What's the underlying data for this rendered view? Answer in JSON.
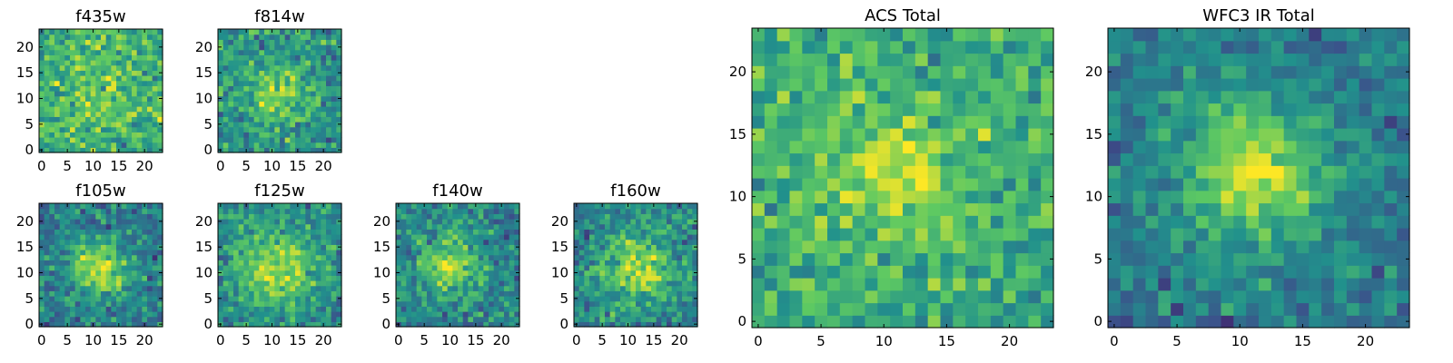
{
  "figure_title": "",
  "colormap": "viridis",
  "colormap_stops": [
    "#440154",
    "#3b528b",
    "#21918c",
    "#5ec962",
    "#fde725"
  ],
  "chart_data": [
    {
      "type": "heatmap",
      "title": "f435w",
      "image_shape": [
        24,
        24
      ],
      "xlim": [
        0,
        24
      ],
      "ylim": [
        0,
        24
      ],
      "xticks": [
        0,
        5,
        10,
        15,
        20
      ],
      "yticks": [
        0,
        5,
        10,
        15,
        20
      ],
      "peak": [
        10,
        12
      ],
      "peak_sigma": 6,
      "peak_amplitude": 0.12,
      "background_level": 0.62,
      "noise_level": 0.16,
      "noise_seed": 11
    },
    {
      "type": "heatmap",
      "title": "f814w",
      "image_shape": [
        24,
        24
      ],
      "xlim": [
        0,
        24
      ],
      "ylim": [
        0,
        24
      ],
      "xticks": [
        0,
        5,
        10,
        15,
        20
      ],
      "yticks": [
        0,
        5,
        10,
        15,
        20
      ],
      "peak": [
        11,
        11
      ],
      "peak_sigma": 4,
      "peak_amplitude": 0.28,
      "background_level": 0.52,
      "noise_level": 0.15,
      "noise_seed": 23
    },
    {
      "type": "heatmap",
      "title": "f105w",
      "image_shape": [
        24,
        24
      ],
      "xlim": [
        0,
        24
      ],
      "ylim": [
        0,
        24
      ],
      "xticks": [
        0,
        5,
        10,
        15,
        20
      ],
      "yticks": [
        0,
        5,
        10,
        15,
        20
      ],
      "peak": [
        11,
        11
      ],
      "peak_sigma": 4,
      "peak_amplitude": 0.45,
      "background_level": 0.42,
      "noise_level": 0.14,
      "noise_seed": 37
    },
    {
      "type": "heatmap",
      "title": "f125w",
      "image_shape": [
        24,
        24
      ],
      "xlim": [
        0,
        24
      ],
      "ylim": [
        0,
        24
      ],
      "xticks": [
        0,
        5,
        10,
        15,
        20
      ],
      "yticks": [
        0,
        5,
        10,
        15,
        20
      ],
      "peak": [
        11,
        11
      ],
      "peak_sigma": 5,
      "peak_amplitude": 0.4,
      "background_level": 0.48,
      "noise_level": 0.13,
      "noise_seed": 41
    },
    {
      "type": "heatmap",
      "title": "f140w",
      "image_shape": [
        24,
        24
      ],
      "xlim": [
        0,
        24
      ],
      "ylim": [
        0,
        24
      ],
      "xticks": [
        0,
        5,
        10,
        15,
        20
      ],
      "yticks": [
        0,
        5,
        10,
        15,
        20
      ],
      "peak": [
        10,
        11
      ],
      "peak_sigma": 4,
      "peak_amplitude": 0.42,
      "background_level": 0.45,
      "noise_level": 0.14,
      "noise_seed": 53
    },
    {
      "type": "heatmap",
      "title": "f160w",
      "image_shape": [
        24,
        24
      ],
      "xlim": [
        0,
        24
      ],
      "ylim": [
        0,
        24
      ],
      "xticks": [
        0,
        5,
        10,
        15,
        20
      ],
      "yticks": [
        0,
        5,
        10,
        15,
        20
      ],
      "peak": [
        12,
        11
      ],
      "peak_sigma": 5,
      "peak_amplitude": 0.42,
      "background_level": 0.45,
      "noise_level": 0.14,
      "noise_seed": 67
    },
    {
      "type": "heatmap",
      "title": "ACS Total",
      "image_shape": [
        24,
        24
      ],
      "xlim": [
        0,
        24
      ],
      "ylim": [
        0,
        24
      ],
      "xticks": [
        0,
        5,
        10,
        15,
        20
      ],
      "yticks": [
        0,
        5,
        10,
        15,
        20
      ],
      "peak": [
        11,
        12
      ],
      "peak_sigma": 4,
      "peak_amplitude": 0.25,
      "background_level": 0.62,
      "noise_level": 0.14,
      "noise_seed": 79
    },
    {
      "type": "heatmap",
      "title": "WFC3 IR Total",
      "image_shape": [
        24,
        24
      ],
      "xlim": [
        0,
        24
      ],
      "ylim": [
        0,
        24
      ],
      "xticks": [
        0,
        5,
        10,
        15,
        20
      ],
      "yticks": [
        0,
        5,
        10,
        15,
        20
      ],
      "peak": [
        11,
        12
      ],
      "peak_sigma": 4,
      "peak_amplitude": 0.52,
      "background_level": 0.4,
      "noise_level": 0.11,
      "noise_seed": 97
    }
  ]
}
